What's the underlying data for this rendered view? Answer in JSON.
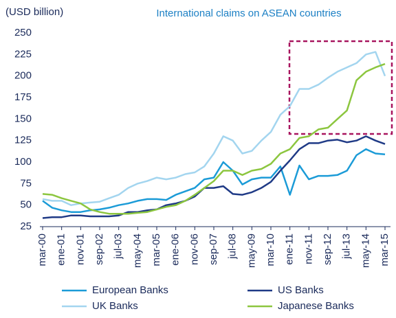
{
  "chart_data": {
    "type": "line",
    "title": "International claims on ASEAN countries",
    "y_label": "(USD billion)",
    "categories": [
      "mar-00",
      null,
      "ene-01",
      null,
      "nov-01",
      null,
      "sep-02",
      null,
      "jul-03",
      null,
      "may-04",
      null,
      "mar-05",
      null,
      "ene-06",
      null,
      "nov-06",
      null,
      "sep-07",
      null,
      "jul-08",
      null,
      "may-09",
      null,
      "mar-10",
      null,
      "ene-11",
      null,
      "nov-11",
      null,
      "sep-12",
      null,
      "jul-13",
      null,
      "may-14",
      null,
      "mar-15"
    ],
    "series": [
      {
        "name": "European Banks",
        "color": "#1b9bd7",
        "values": [
          55,
          47,
          44,
          42,
          42,
          44,
          45,
          47,
          50,
          52,
          55,
          57,
          57,
          56,
          62,
          66,
          70,
          80,
          82,
          100,
          90,
          74,
          80,
          82,
          82,
          95,
          62,
          96,
          80,
          84,
          84,
          85,
          90,
          108,
          115,
          110,
          109
        ]
      },
      {
        "name": "US Banks",
        "color": "#1f3a86",
        "values": [
          35,
          36,
          36,
          38,
          38,
          37,
          37,
          37,
          38,
          42,
          42,
          44,
          45,
          50,
          52,
          55,
          60,
          70,
          70,
          72,
          63,
          62,
          65,
          70,
          77,
          90,
          102,
          115,
          122,
          122,
          125,
          126,
          123,
          125,
          130,
          125,
          121
        ]
      },
      {
        "name": "UK Banks",
        "color": "#a3d5ef",
        "values": [
          57,
          55,
          55,
          50,
          52,
          53,
          54,
          58,
          62,
          70,
          75,
          78,
          82,
          80,
          82,
          86,
          88,
          95,
          110,
          130,
          125,
          110,
          113,
          125,
          135,
          155,
          165,
          185,
          185,
          190,
          198,
          205,
          210,
          215,
          225,
          228,
          200
        ]
      },
      {
        "name": "Japanese Banks",
        "color": "#8cc63f",
        "values": [
          63,
          62,
          58,
          55,
          52,
          45,
          42,
          40,
          40,
          40,
          41,
          42,
          45,
          48,
          50,
          55,
          62,
          70,
          78,
          90,
          90,
          85,
          90,
          92,
          98,
          110,
          115,
          128,
          130,
          138,
          140,
          150,
          160,
          195,
          205,
          210,
          214
        ]
      }
    ],
    "ylim": [
      25,
      250
    ],
    "yticks": [
      25,
      50,
      75,
      100,
      125,
      150,
      175,
      200,
      225,
      250
    ],
    "grid": false
  }
}
